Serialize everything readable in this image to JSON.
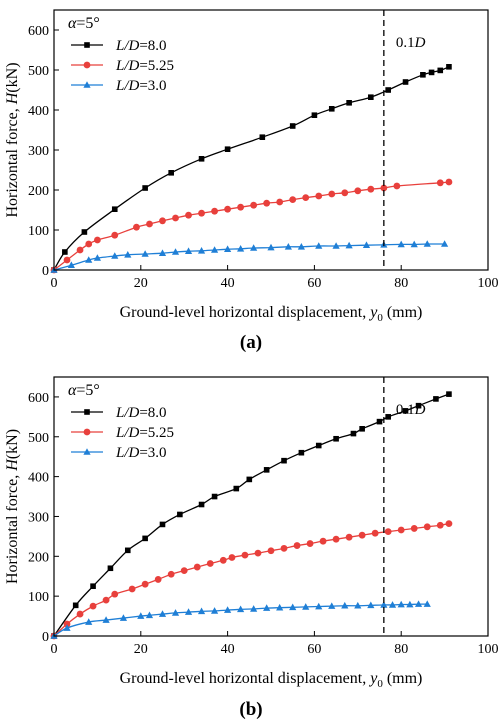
{
  "chart_data": [
    {
      "type": "line",
      "panel_label": "(a)",
      "xlabel": "Ground-level horizontal displacement, y0 (mm)",
      "xlabel_parts": {
        "main": "Ground-level horizontal displacement, ",
        "var": "y",
        "sub": "0",
        "unit": " (mm)"
      },
      "ylabel": "Horizontal force, H(kN)",
      "ylabel_parts": {
        "main": "Horizontal force, ",
        "var": "H",
        "unit": "(kN)"
      },
      "xlim": [
        0,
        100
      ],
      "ylim": [
        0,
        650
      ],
      "xticks": [
        0,
        20,
        40,
        60,
        80,
        100
      ],
      "yticks": [
        0,
        100,
        200,
        300,
        400,
        500,
        600
      ],
      "legend_title": "α=5°",
      "legend_title_parts": {
        "var": "α",
        "rest": "=5°"
      },
      "legend_position": "top-left",
      "reference_line": {
        "x": 76,
        "label": "0.1D",
        "label_parts": {
          "num": "0.1",
          "var": "D"
        },
        "style": "dashed"
      },
      "series": [
        {
          "name": "L/D=8.0",
          "name_parts": {
            "var": "L/D",
            "rest": "=8.0"
          },
          "color": "#000000",
          "marker": "square",
          "x": [
            0,
            2.5,
            7,
            14,
            21,
            27,
            34,
            40,
            48,
            55,
            60,
            64,
            68,
            73,
            77,
            81,
            85,
            87,
            89,
            91
          ],
          "y": [
            0,
            45,
            95,
            152,
            205,
            243,
            278,
            302,
            332,
            360,
            387,
            403,
            418,
            432,
            450,
            470,
            488,
            494,
            499,
            508
          ]
        },
        {
          "name": "L/D=5.25",
          "name_parts": {
            "var": "L/D",
            "rest": "=5.25"
          },
          "color": "#e8403c",
          "marker": "circle",
          "x": [
            0,
            3,
            6,
            8,
            10,
            14,
            19,
            22,
            25,
            28,
            31,
            34,
            37,
            40,
            43,
            46,
            49,
            52,
            55,
            58,
            61,
            64,
            67,
            70,
            73,
            76,
            79,
            89,
            91
          ],
          "y": [
            0,
            25,
            50,
            65,
            75,
            87,
            107,
            115,
            123,
            130,
            137,
            142,
            147,
            152,
            157,
            162,
            167,
            170,
            176,
            181,
            185,
            190,
            193,
            198,
            202,
            205,
            210,
            218,
            220
          ]
        },
        {
          "name": "L/D=3.0",
          "name_parts": {
            "var": "L/D",
            "rest": "=3.0"
          },
          "color": "#1f7fd6",
          "marker": "triangle",
          "x": [
            0,
            4,
            8,
            10,
            14,
            17,
            21,
            25,
            28,
            31,
            34,
            37,
            40,
            43,
            46,
            50,
            54,
            57,
            61,
            65,
            68,
            72,
            76,
            80,
            83,
            86,
            90
          ],
          "y": [
            0,
            12,
            25,
            30,
            35,
            38,
            40,
            42,
            45,
            47,
            48,
            50,
            52,
            53,
            55,
            56,
            58,
            58,
            60,
            60,
            61,
            62,
            63,
            64,
            64,
            65,
            65
          ]
        }
      ]
    },
    {
      "type": "line",
      "panel_label": "(b)",
      "xlabel": "Ground-level horizontal displacement, y0 (mm)",
      "xlabel_parts": {
        "main": "Ground-level horizontal displacement, ",
        "var": "y",
        "sub": "0",
        "unit": " (mm)"
      },
      "ylabel": "Horizontal force, H(kN)",
      "ylabel_parts": {
        "main": "Horizontal force, ",
        "var": "H",
        "unit": "(kN)"
      },
      "xlim": [
        0,
        100
      ],
      "ylim": [
        0,
        650
      ],
      "xticks": [
        0,
        20,
        40,
        60,
        80,
        100
      ],
      "yticks": [
        0,
        100,
        200,
        300,
        400,
        500,
        600
      ],
      "legend_title": "α=5°",
      "legend_title_parts": {
        "var": "α",
        "rest": "=5°"
      },
      "legend_position": "top-left",
      "reference_line": {
        "x": 76,
        "label": "0.1D",
        "label_parts": {
          "num": "0.1",
          "var": "D"
        },
        "style": "dashed"
      },
      "series": [
        {
          "name": "L/D=8.0",
          "name_parts": {
            "var": "L/D",
            "rest": "=8.0"
          },
          "color": "#000000",
          "marker": "square",
          "x": [
            0,
            5,
            9,
            13,
            17,
            21,
            25,
            29,
            34,
            37,
            42,
            45,
            49,
            53,
            57,
            61,
            65,
            69,
            71,
            75,
            77,
            81,
            84,
            88,
            91
          ],
          "y": [
            0,
            77,
            125,
            170,
            215,
            245,
            280,
            305,
            330,
            350,
            370,
            393,
            417,
            440,
            460,
            478,
            495,
            508,
            520,
            538,
            550,
            565,
            578,
            595,
            607
          ]
        },
        {
          "name": "L/D=5.25",
          "name_parts": {
            "var": "L/D",
            "rest": "=5.25"
          },
          "color": "#e8403c",
          "marker": "circle",
          "x": [
            0,
            3,
            6,
            9,
            12,
            14,
            18,
            21,
            24,
            27,
            30,
            33,
            36,
            39,
            41,
            44,
            47,
            50,
            53,
            56,
            59,
            62,
            65,
            68,
            71,
            74,
            77,
            80,
            83,
            86,
            89,
            91
          ],
          "y": [
            0,
            30,
            55,
            75,
            90,
            105,
            118,
            130,
            142,
            155,
            164,
            173,
            182,
            190,
            197,
            203,
            208,
            214,
            220,
            227,
            232,
            238,
            243,
            248,
            253,
            258,
            262,
            266,
            270,
            274,
            278,
            282
          ]
        },
        {
          "name": "L/D=3.0",
          "name_parts": {
            "var": "L/D",
            "rest": "=3.0"
          },
          "color": "#1f7fd6",
          "marker": "triangle",
          "x": [
            0,
            3,
            8,
            12,
            16,
            20,
            22,
            25,
            28,
            31,
            34,
            37,
            40,
            43,
            46,
            49,
            52,
            55,
            58,
            61,
            64,
            67,
            70,
            73,
            76,
            78,
            80,
            82,
            84,
            86
          ],
          "y": [
            0,
            20,
            35,
            40,
            45,
            50,
            52,
            55,
            58,
            60,
            62,
            63,
            65,
            67,
            68,
            70,
            71,
            72,
            73,
            74,
            75,
            76,
            76,
            77,
            78,
            78,
            79,
            79,
            80,
            80
          ]
        }
      ]
    }
  ]
}
